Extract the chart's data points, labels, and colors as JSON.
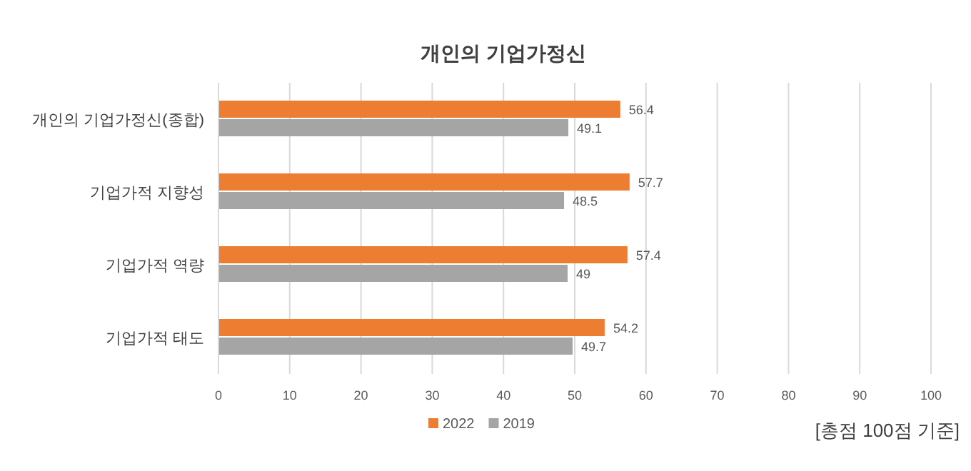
{
  "chart_data": {
    "type": "bar",
    "orientation": "horizontal",
    "title": "개인의 기업가정신",
    "categories": [
      "개인의 기업가정신(종합)",
      "기업가적 지향성",
      "기업가적 역량",
      "기업가적 태도"
    ],
    "series": [
      {
        "name": "2022",
        "color": "#ed7d31",
        "values": [
          56.4,
          57.7,
          57.4,
          54.2
        ]
      },
      {
        "name": "2019",
        "color": "#a5a5a5",
        "values": [
          49.1,
          48.5,
          49,
          49.7
        ]
      }
    ],
    "xlim": [
      0,
      100
    ],
    "xticks": [
      0,
      10,
      20,
      30,
      40,
      50,
      60,
      70,
      80,
      90,
      100
    ],
    "grid": "x",
    "legend": "bottom",
    "data_labels": true,
    "annotations": [
      "[총점 100점 기준]"
    ]
  }
}
